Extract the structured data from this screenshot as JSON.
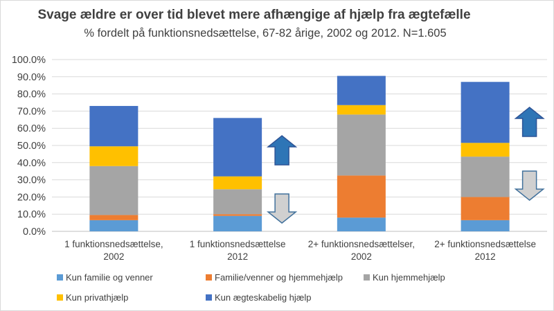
{
  "chart_data": {
    "type": "bar",
    "stacked": true,
    "title": "Svage ældre er over tid blevet mere afhængige af hjælp fra ægtefælle",
    "subtitle": "% fordelt på funktionsnedsættelse, 67-82 årige, 2002 og 2012. N=1.605",
    "categories": [
      [
        "1 funktionsnedsættelse,",
        "2002"
      ],
      [
        "1 funktionsnedsættelse",
        "2012"
      ],
      [
        "2+ funktionsnedsættelser,",
        "2002"
      ],
      [
        "2+ funktionsnedsættelse",
        "2012"
      ]
    ],
    "ylim": [
      0,
      100
    ],
    "yticks": [
      "0.0%",
      "10.0%",
      "20.0%",
      "30.0%",
      "40.0%",
      "50.0%",
      "60.0%",
      "70.0%",
      "80.0%",
      "90.0%",
      "100.0%"
    ],
    "grid": true,
    "legend_position": "bottom",
    "series": [
      {
        "name": "Kun familie og venner",
        "color": "#5b9bd5",
        "values": [
          6.5,
          9.0,
          8.0,
          6.5
        ]
      },
      {
        "name": "Familie/venner og hjemmehjælp",
        "color": "#ed7d31",
        "values": [
          3.0,
          1.0,
          24.5,
          13.5
        ]
      },
      {
        "name": "Kun hjemmehjælp",
        "color": "#a5a5a5",
        "values": [
          28.5,
          14.5,
          35.5,
          23.5
        ]
      },
      {
        "name": "Kun privathjælp",
        "color": "#ffc000",
        "values": [
          11.5,
          7.5,
          5.5,
          8.0
        ]
      },
      {
        "name": "Kun ægteskabelig hjælp",
        "color": "#4472c4",
        "values": [
          23.5,
          34.0,
          17.0,
          35.5
        ]
      }
    ],
    "annotations": [
      {
        "category": 1,
        "direction": "up",
        "color": "#2e75b6",
        "icon": "arrow-up-icon"
      },
      {
        "category": 1,
        "direction": "down",
        "color": "#d0d0d0",
        "icon": "arrow-down-icon"
      },
      {
        "category": 3,
        "direction": "up",
        "color": "#2e75b6",
        "icon": "arrow-up-icon"
      },
      {
        "category": 3,
        "direction": "down",
        "color": "#d0d0d0",
        "icon": "arrow-down-icon"
      }
    ]
  }
}
